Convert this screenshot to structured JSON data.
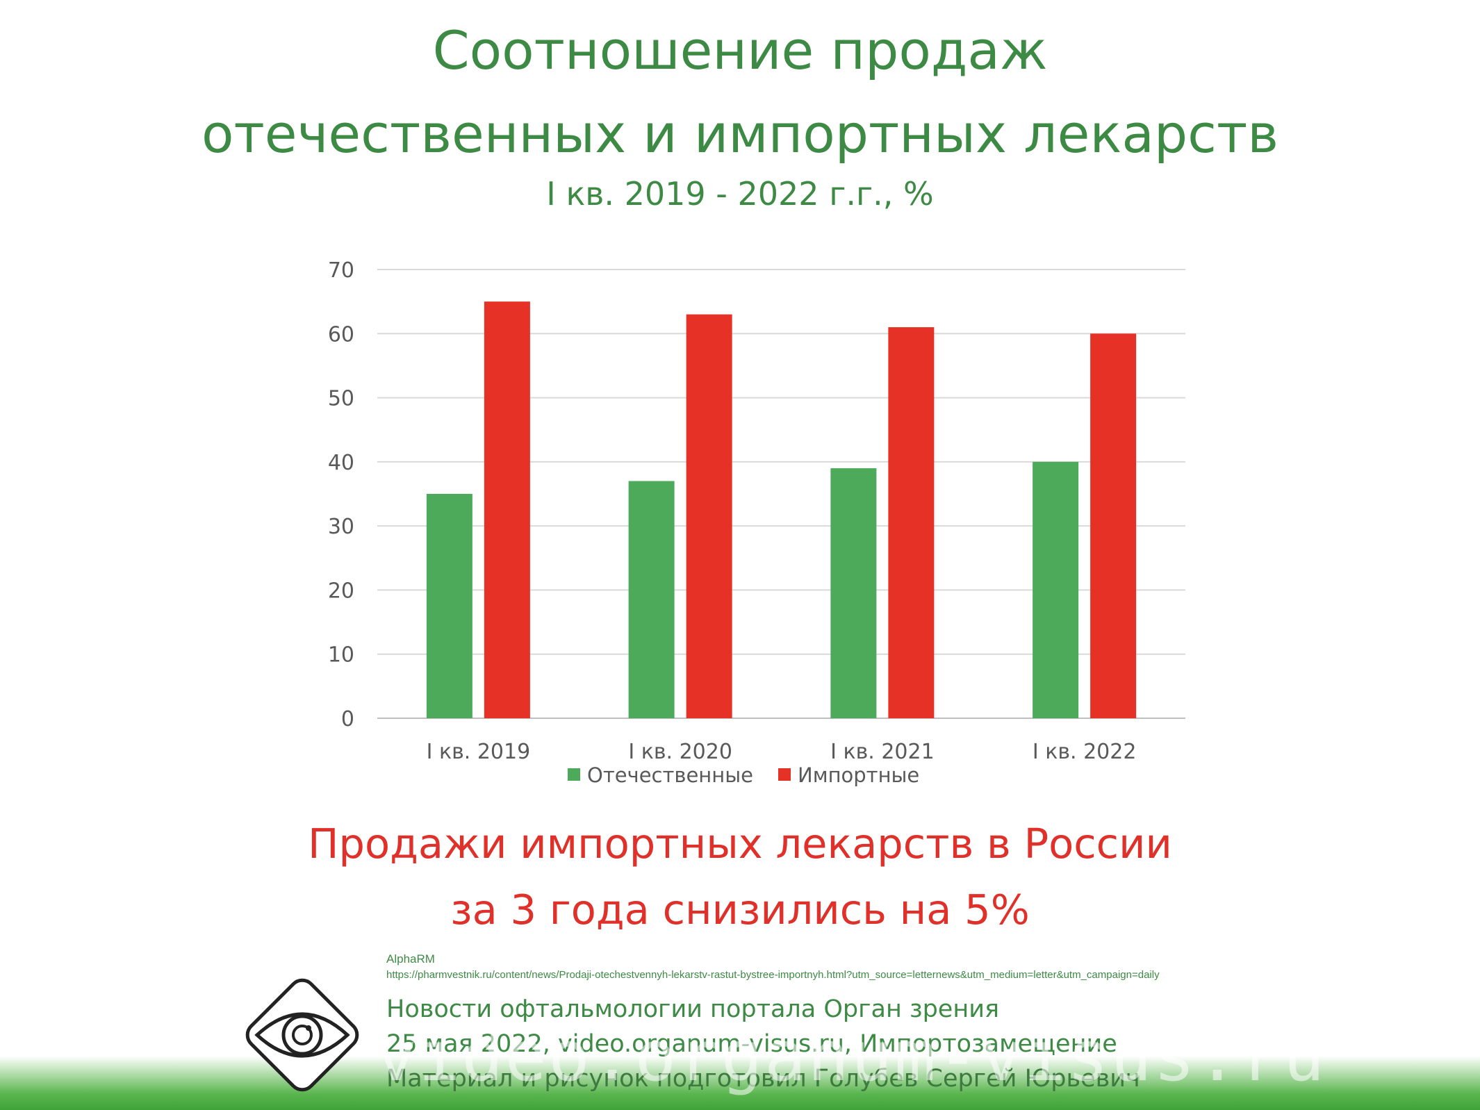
{
  "header": {
    "title_line1": "Соотношение продаж",
    "title_line2": "отечественных и импортных лекарств",
    "subtitle": "I кв. 2019 - 2022 г.г., %"
  },
  "chart_data": {
    "type": "bar",
    "categories": [
      "I кв. 2019",
      "I кв. 2020",
      "I кв. 2021",
      "I кв. 2022"
    ],
    "series": [
      {
        "name": "Отечественные",
        "color": "#4caa5a",
        "values": [
          35,
          37,
          39,
          40
        ]
      },
      {
        "name": "Импортные",
        "color": "#e63226",
        "values": [
          65,
          63,
          61,
          60
        ]
      }
    ],
    "yticks": [
      "0",
      "10",
      "20",
      "30",
      "40",
      "50",
      "60",
      "70"
    ],
    "ylim": [
      0,
      70
    ],
    "grid": true,
    "legend_position": "bottom"
  },
  "conclusion": {
    "line1": "Продажи импортных лекарств в России",
    "line2": "за 3 года снизились на 5%"
  },
  "source": {
    "name": "AlphaRM",
    "url": "https://pharmvestnik.ru/content/news/Prodaji-otechestvennyh-lekarstv-rastut-bystree-importnyh.html?utm_source=letternews&utm_medium=letter&utm_campaign=daily"
  },
  "credits": {
    "line1": "Новости офтальмологии портала Орган зрения",
    "line2": "25 мая 2022, video.organum-visus.ru, Импортозамещение",
    "line3": "Материал и рисунок подготовил Голубев Сергей Юрьевич"
  },
  "watermark": "video.organum-visus.ru",
  "logo": {
    "icon": "eye-icon"
  }
}
